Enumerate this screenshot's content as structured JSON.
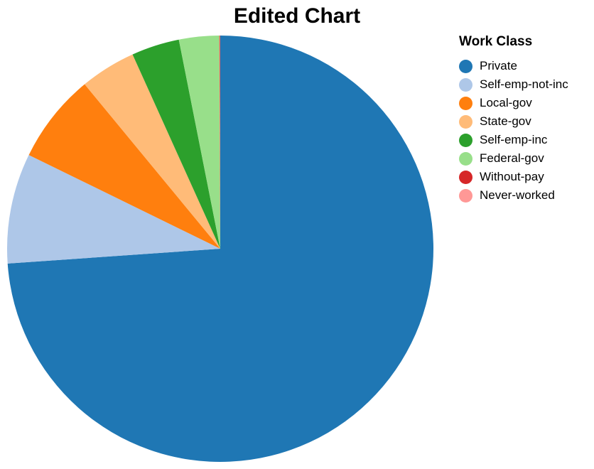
{
  "chart_data": {
    "type": "pie",
    "title": "Edited Chart",
    "legend": {
      "title": "Work Class",
      "placement": "right"
    },
    "slices": [
      {
        "label": "Private",
        "value": 75.2,
        "color": "#1f77b4"
      },
      {
        "label": "Self-emp-not-inc",
        "value": 8.5,
        "color": "#aec7e8"
      },
      {
        "label": "Local-gov",
        "value": 6.9,
        "color": "#ff7f0e"
      },
      {
        "label": "State-gov",
        "value": 4.3,
        "color": "#ffbb78"
      },
      {
        "label": "Self-emp-inc",
        "value": 3.7,
        "color": "#2ca02c"
      },
      {
        "label": "Federal-gov",
        "value": 3.1,
        "color": "#98df8a"
      },
      {
        "label": "Without-pay",
        "value": 0.05,
        "color": "#d62728"
      },
      {
        "label": "Never-worked",
        "value": 0.02,
        "color": "#ff9896"
      }
    ]
  }
}
